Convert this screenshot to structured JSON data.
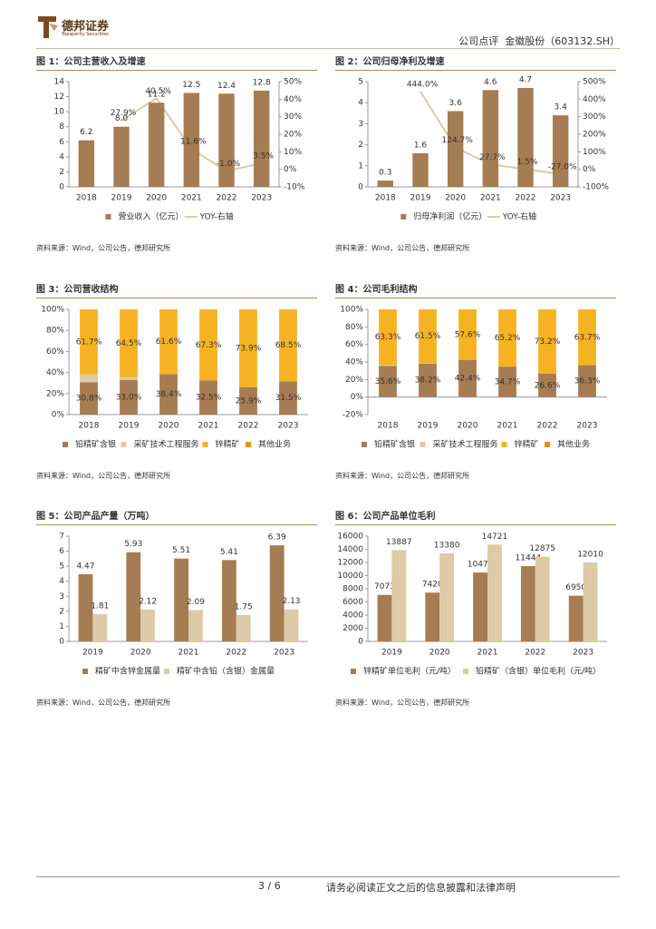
{
  "header": {
    "brand": "德邦证券",
    "brand_en": "Topsperity Securities",
    "right": "公司点评  金徽股份（603132.SH）"
  },
  "footer": {
    "page": "3 / 6",
    "disclaimer": "请务必阅读正文之后的信息披露和法律声明"
  },
  "chart_data": [
    {
      "type": "bar",
      "title": "图 1：公司主营收入及增速",
      "source": "资料来源：Wind，公司公告，德邦研究所",
      "categories": [
        "2018",
        "2019",
        "2020",
        "2021",
        "2022",
        "2023"
      ],
      "ylim": [
        0,
        14
      ],
      "yticks": [
        0,
        2,
        4,
        6,
        8,
        10,
        12,
        14
      ],
      "y2lim": [
        -10,
        50
      ],
      "y2ticks": [
        {
          "value": -10,
          "label": "-10%"
        },
        {
          "value": 0,
          "label": "0%"
        },
        {
          "value": 10,
          "label": "10%"
        },
        {
          "value": 20,
          "label": "20%"
        },
        {
          "value": 30,
          "label": "30%"
        },
        {
          "value": 40,
          "label": "40%"
        },
        {
          "value": 50,
          "label": "50%"
        }
      ],
      "series": [
        {
          "name": "营业收入（亿元）",
          "color": "#a67c52",
          "values": [
            6.2,
            8.0,
            11.2,
            12.5,
            12.4,
            12.8
          ],
          "value_labels": [
            "6.2",
            "8.0",
            "11.2",
            "12.5",
            "12.4",
            "12.8"
          ]
        },
        {
          "name": "YOY-右轴",
          "color": "#dccba6",
          "type": "line",
          "axis": "y2",
          "values": [
            null,
            27.9,
            40.5,
            11.6,
            -1.0,
            3.5
          ],
          "value_labels": [
            null,
            "27.9%",
            "40.5%",
            "11.6%",
            "-1.0%",
            "3.5%"
          ]
        }
      ]
    },
    {
      "type": "bar",
      "title": "图 2：公司归母净利及增速",
      "source": "资料来源：Wind，公司公告，德邦研究所",
      "categories": [
        "2018",
        "2019",
        "2020",
        "2021",
        "2022",
        "2023"
      ],
      "ylim": [
        0,
        5
      ],
      "yticks": [
        0,
        1,
        2,
        3,
        4,
        5
      ],
      "y2lim": [
        -100,
        500
      ],
      "y2ticks": [
        {
          "value": -100,
          "label": "-100%"
        },
        {
          "value": 0,
          "label": "0%"
        },
        {
          "value": 100,
          "label": "100%"
        },
        {
          "value": 200,
          "label": "200%"
        },
        {
          "value": 300,
          "label": "300%"
        },
        {
          "value": 400,
          "label": "400%"
        },
        {
          "value": 500,
          "label": "500%"
        }
      ],
      "series": [
        {
          "name": "归母净利润（亿元）",
          "color": "#a67c52",
          "values": [
            0.3,
            1.6,
            3.6,
            4.6,
            4.7,
            3.4
          ],
          "data_labels": true
        },
        {
          "name": "YOY-右轴",
          "color": "#dccba6",
          "type": "line",
          "axis": "y2",
          "values": [
            null,
            444.0,
            124.7,
            27.7,
            1.5,
            -27.0
          ],
          "value_labels": [
            null,
            "444.0%",
            "124.7%",
            "27.7%",
            "1.5%",
            "-27.0%"
          ]
        }
      ]
    },
    {
      "type": "stacked_bar",
      "title": "图 3：公司营收结构",
      "source": "资料来源：Wind，公司公告，德邦研究所",
      "categories": [
        "2018",
        "2019",
        "2020",
        "2021",
        "2022",
        "2023"
      ],
      "ylim": [
        0,
        100
      ],
      "yticks": [
        {
          "value": 0,
          "label": "0%"
        },
        {
          "value": 20,
          "label": "20%"
        },
        {
          "value": 40,
          "label": "40%"
        },
        {
          "value": 60,
          "label": "60%"
        },
        {
          "value": 80,
          "label": "80%"
        },
        {
          "value": 100,
          "label": "100%"
        }
      ],
      "series": [
        {
          "name": "铅精矿含银",
          "color": "#a67c52",
          "values": [
            30.8,
            33.0,
            38.4,
            32.5,
            25.9,
            31.5
          ],
          "value_labels": [
            "30.8%",
            "33.0%",
            "38.4%",
            "32.5%",
            "25.9%",
            "31.5%"
          ]
        },
        {
          "name": "采矿技术工程服务",
          "color": "#dccba6",
          "values": [
            7.5,
            2.5,
            0,
            0,
            0,
            0
          ]
        },
        {
          "name": "锌精矿",
          "color": "#f5b324",
          "values": [
            61.7,
            64.5,
            61.6,
            67.3,
            73.9,
            68.5
          ],
          "value_labels": [
            "61.7%",
            "64.5%",
            "61.6%",
            "67.3%",
            "73.9%",
            "68.5%"
          ]
        },
        {
          "name": "其他业务",
          "color": "#e8901a",
          "values": [
            0,
            0,
            0,
            0.2,
            0.2,
            0
          ]
        }
      ]
    },
    {
      "type": "stacked_bar",
      "title": "图 4：公司毛利结构",
      "source": "资料来源：Wind，公司公告，德邦研究所",
      "categories": [
        "2018",
        "2019",
        "2020",
        "2021",
        "2022",
        "2023"
      ],
      "ylim": [
        -20,
        100
      ],
      "yticks": [
        {
          "value": -20,
          "label": "-20%"
        },
        {
          "value": 0,
          "label": "0%"
        },
        {
          "value": 20,
          "label": "20%"
        },
        {
          "value": 40,
          "label": "40%"
        },
        {
          "value": 60,
          "label": "60%"
        },
        {
          "value": 80,
          "label": "80%"
        },
        {
          "value": 100,
          "label": "100%"
        }
      ],
      "series": [
        {
          "name": "铅精矿含银",
          "color": "#a67c52",
          "values": [
            35.6,
            38.2,
            42.4,
            34.7,
            26.6,
            36.3
          ],
          "value_labels": [
            "35.6%",
            "38.2%",
            "42.4%",
            "34.7%",
            "26.6%",
            "36.3%"
          ]
        },
        {
          "name": "采矿技术工程服务",
          "color": "#dccba6",
          "values": [
            1.1,
            0.3,
            0,
            0,
            0,
            0
          ]
        },
        {
          "name": "锌精矿",
          "color": "#f5b324",
          "values": [
            63.3,
            61.5,
            57.6,
            65.2,
            73.2,
            63.7
          ],
          "value_labels": [
            "63.3%",
            "61.5%",
            "57.6%",
            "65.2%",
            "73.2%",
            "63.7%"
          ]
        },
        {
          "name": "其他业务",
          "color": "#e8901a",
          "values": [
            0,
            0,
            0,
            0.1,
            0.2,
            0
          ]
        }
      ]
    },
    {
      "type": "bar",
      "title": "图 5：公司产品产量（万吨）",
      "source": "资料来源：Wind，公司公告，德邦研究所",
      "categories": [
        "2019",
        "2020",
        "2021",
        "2022",
        "2023"
      ],
      "ylim": [
        0,
        7
      ],
      "yticks": [
        0,
        1,
        2,
        3,
        4,
        5,
        6,
        7
      ],
      "series": [
        {
          "name": "精矿中含锌金属量",
          "color": "#a67c52",
          "values": [
            4.47,
            5.93,
            5.51,
            5.41,
            6.39
          ],
          "data_labels": true
        },
        {
          "name": "精矿中含铅（含银）金属量",
          "color": "#dccba6",
          "values": [
            1.81,
            2.12,
            2.09,
            1.75,
            2.13
          ],
          "data_labels": true
        }
      ]
    },
    {
      "type": "bar",
      "title": "图 6：公司产品单位毛利",
      "source": "资料来源：Wind，公司公告，德邦研究所",
      "categories": [
        "2019",
        "2020",
        "2021",
        "2022",
        "2023"
      ],
      "ylim": [
        0,
        16000
      ],
      "yticks": [
        0,
        2000,
        4000,
        6000,
        8000,
        10000,
        12000,
        14000,
        16000
      ],
      "series": [
        {
          "name": "锌精矿单位毛利（元/吨）",
          "color": "#a67c52",
          "values": [
            7073,
            7420,
            10471,
            11444,
            6950
          ],
          "data_labels": true
        },
        {
          "name": "铅精矿（含银）单位毛利（元/吨）",
          "color": "#dccba6",
          "values": [
            13887,
            13380,
            14721,
            12875,
            12010
          ],
          "data_labels": true
        }
      ]
    }
  ]
}
